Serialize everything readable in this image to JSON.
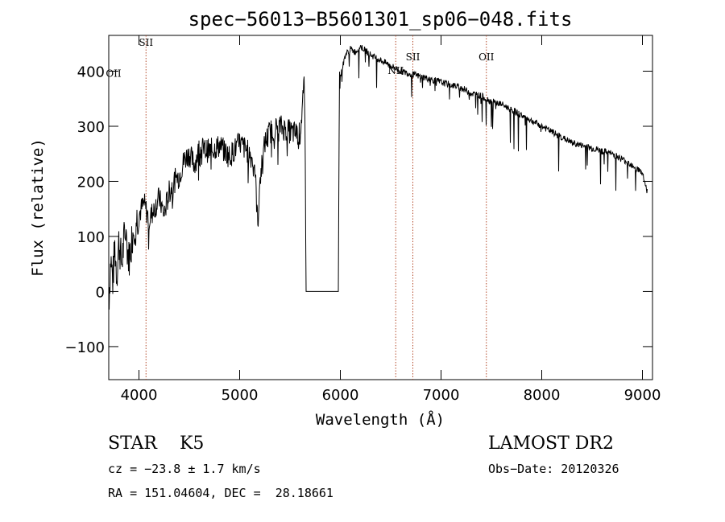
{
  "chart_data": {
    "type": "line",
    "title": "spec−56013−B5601301_sp06−048.fits",
    "xlabel": "Wavelength (Å)",
    "ylabel": "Flux (relative)",
    "xlim": [
      3700,
      9100
    ],
    "ylim": [
      -160,
      465
    ],
    "xticks": [
      4000,
      5000,
      6000,
      7000,
      8000,
      9000
    ],
    "yticks": [
      -100,
      0,
      100,
      200,
      300,
      400
    ],
    "ytick_labels": [
      "−100",
      "0",
      "100",
      "200",
      "300",
      "400"
    ],
    "grid": false,
    "series": [
      {
        "x": [
          3700,
          3720,
          3740,
          3760,
          3780,
          3800,
          3830,
          3860,
          3900,
          3950,
          4000,
          4050,
          4100,
          4150,
          4200,
          4250,
          4300,
          4350,
          4400,
          4450,
          4500,
          4550,
          4600,
          4700,
          4800,
          4900,
          5000,
          5100,
          5150,
          5180,
          5200,
          5250,
          5300,
          5400,
          5500,
          5600,
          5640,
          5650,
          5660,
          5690,
          5700,
          5800,
          5900,
          5980,
          5990,
          6000,
          6050,
          6100,
          6150,
          6200,
          6300,
          6400,
          6500,
          6600,
          6700,
          6800,
          6900,
          7000,
          7100,
          7200,
          7300,
          7400,
          7500,
          7600,
          7700,
          7800,
          7900,
          8000,
          8100,
          8200,
          8300,
          8400,
          8500,
          8600,
          8700,
          8800,
          8900,
          9000,
          9050
        ],
        "y": [
          -20,
          60,
          20,
          80,
          30,
          90,
          50,
          110,
          60,
          120,
          140,
          160,
          130,
          150,
          170,
          140,
          180,
          200,
          210,
          240,
          250,
          230,
          260,
          255,
          265,
          245,
          270,
          250,
          230,
          120,
          200,
          270,
          290,
          300,
          290,
          285,
          370,
          290,
          0,
          0,
          0,
          0,
          0,
          0,
          380,
          390,
          430,
          440,
          435,
          445,
          430,
          420,
          410,
          400,
          395,
          390,
          385,
          380,
          375,
          370,
          360,
          355,
          345,
          340,
          330,
          320,
          310,
          300,
          290,
          280,
          270,
          265,
          260,
          255,
          250,
          240,
          230,
          215,
          180
        ]
      }
    ],
    "lines": [
      {
        "label": "SII",
        "x": 4070
      },
      {
        "label": "NII",
        "x": 6550
      },
      {
        "label": "SII",
        "x": 6720
      },
      {
        "label": "OII",
        "x": 7450
      }
    ],
    "extra_labels": [
      {
        "label": "OII",
        "anchor": "left-axis-near-400"
      }
    ]
  },
  "info": {
    "object_type": "STAR    K5",
    "survey": "LAMOST DR2",
    "cz": "cz = −23.8 ± 1.7 km/s",
    "obs_date": "Obs−Date: 20120326",
    "coords": "RA = 151.04604, DEC =  28.18661"
  }
}
